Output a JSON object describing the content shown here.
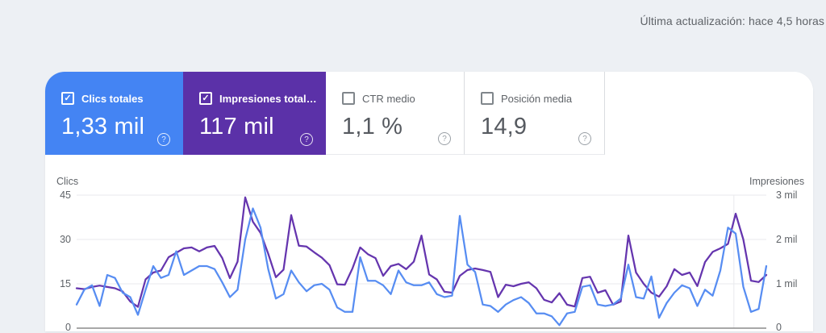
{
  "header": {
    "last_update": "Última actualización: hace 4,5 horas"
  },
  "icons": {
    "help": "?",
    "check": "✓"
  },
  "cards": [
    {
      "label": "Clics totales",
      "value": "1,33 mil",
      "checked": true,
      "bg": "#4484f3"
    },
    {
      "label": "Impresiones total…",
      "value": "117 mil",
      "checked": true,
      "bg": "#5b31a8"
    },
    {
      "label": "CTR medio",
      "value": "1,1 %",
      "checked": false,
      "bg": null
    },
    {
      "label": "Posición media",
      "value": "14,9",
      "checked": false,
      "bg": null
    }
  ],
  "chart_data": {
    "type": "line",
    "grid": true,
    "left_axis": {
      "label": "Clics",
      "min": 0,
      "max": 45,
      "ticks": [
        "45",
        "30",
        "15",
        "0"
      ]
    },
    "right_axis": {
      "label": "Impresiones",
      "min": 0,
      "max": 3000,
      "ticks": [
        "3 mil",
        "2 mil",
        "1 mil",
        "0"
      ]
    },
    "colors": {
      "clicks": "#578df2",
      "impressions": "#6535ae",
      "gridline": "#e8eaed",
      "baseline": "#757575"
    },
    "vertical_separator_fraction": 0.953,
    "series": [
      {
        "name": "Clics",
        "axis": "left",
        "values": [
          8,
          13,
          14.5,
          7.5,
          18,
          17,
          12,
          10.5,
          4.5,
          13,
          21,
          17,
          18,
          26,
          18,
          19.5,
          21,
          21,
          20,
          15.5,
          10.5,
          13,
          30,
          40.5,
          34,
          20,
          10,
          11.5,
          19.5,
          15.5,
          12.5,
          14.5,
          15,
          13,
          7,
          5.5,
          5.5,
          24,
          16,
          16,
          14.5,
          11.5,
          19.5,
          15.5,
          14.5,
          14.5,
          15.5,
          11.5,
          10.5,
          11,
          38,
          21.5,
          19,
          8,
          7.5,
          5.5,
          8,
          9.5,
          10.5,
          8.5,
          5,
          5,
          4,
          1,
          5,
          5.5,
          14,
          14.5,
          8,
          7.5,
          8,
          10,
          21.5,
          10.5,
          10,
          17.5,
          3.5,
          8.5,
          12,
          14.5,
          13.5,
          7.5,
          13,
          11,
          19.5,
          34,
          32,
          14,
          5.5,
          6.5,
          21
        ]
      },
      {
        "name": "Impresiones",
        "axis": "right",
        "values": [
          900,
          880,
          930,
          960,
          930,
          900,
          830,
          600,
          480,
          1100,
          1255,
          1300,
          1600,
          1700,
          1800,
          1820,
          1730,
          1820,
          1855,
          1582,
          1127,
          1500,
          2950,
          2400,
          2150,
          1680,
          1150,
          1320,
          2550,
          1860,
          1840,
          1710,
          1590,
          1420,
          990,
          980,
          1350,
          1820,
          1670,
          1580,
          1180,
          1400,
          1450,
          1330,
          1500,
          2090,
          1210,
          1100,
          820,
          800,
          1180,
          1310,
          1345,
          1310,
          1270,
          700,
          980,
          945,
          1000,
          1035,
          900,
          640,
          580,
          790,
          530,
          490,
          1130,
          1160,
          800,
          855,
          530,
          600,
          2090,
          1255,
          1000,
          800,
          710,
          945,
          1330,
          1200,
          1255,
          950,
          1490,
          1720,
          1800,
          1900,
          2582,
          2000,
          1070,
          1040,
          1200
        ]
      }
    ]
  }
}
